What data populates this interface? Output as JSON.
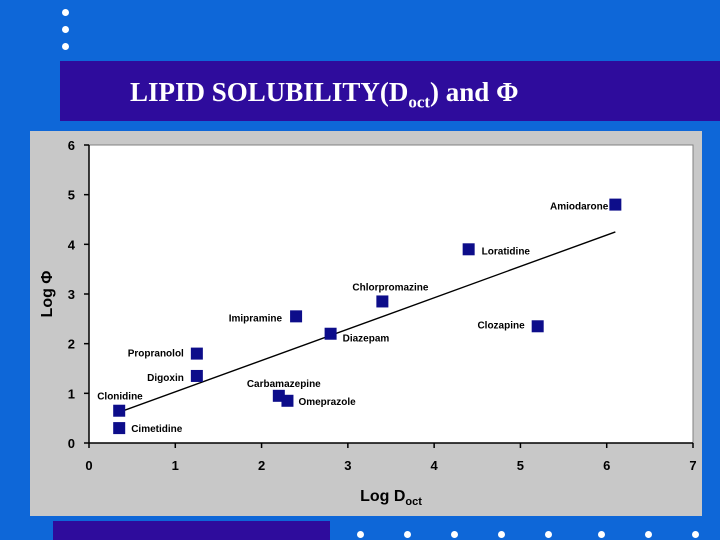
{
  "slide": {
    "title_main": "LIPID SOLUBILITY(D",
    "title_sub": "oct",
    "title_tail": ") and Φ",
    "colors": {
      "background": "#0e67d8",
      "band": "#2e0c9c",
      "panel": "#c8c8c8",
      "plot": "#ffffff",
      "marker": "#0d0d8a"
    }
  },
  "chart_data": {
    "type": "scatter",
    "xlabel_main": "Log D",
    "xlabel_sub": "oct",
    "ylabel": "Log Φ",
    "xlim": [
      0,
      7
    ],
    "ylim": [
      0,
      6
    ],
    "xticks": [
      "0",
      "1",
      "2",
      "3",
      "4",
      "5",
      "6",
      "7"
    ],
    "yticks": [
      "0",
      "1",
      "2",
      "3",
      "4",
      "5",
      "6"
    ],
    "grid": false,
    "legend": "none",
    "points": [
      {
        "label": "Amiodarone",
        "x": 6.1,
        "y": 4.8
      },
      {
        "label": "Loratidine",
        "x": 4.4,
        "y": 3.9
      },
      {
        "label": "Chlorpromazine",
        "x": 3.4,
        "y": 2.85
      },
      {
        "label": "Clozapine",
        "x": 5.2,
        "y": 2.35
      },
      {
        "label": "Imipramine",
        "x": 2.4,
        "y": 2.55
      },
      {
        "label": "Diazepam",
        "x": 2.8,
        "y": 2.2
      },
      {
        "label": "Propranolol",
        "x": 1.25,
        "y": 1.8
      },
      {
        "label": "Digoxin",
        "x": 1.25,
        "y": 1.35
      },
      {
        "label": "Carbamazepine",
        "x": 2.2,
        "y": 0.95
      },
      {
        "label": "Omeprazole",
        "x": 2.3,
        "y": 0.85
      },
      {
        "label": "Clonidine",
        "x": 0.35,
        "y": 0.65
      },
      {
        "label": "Cimetidine",
        "x": 0.35,
        "y": 0.3
      }
    ],
    "trendline": {
      "x": [
        0.35,
        6.1
      ],
      "y": [
        0.62,
        4.25
      ]
    }
  }
}
